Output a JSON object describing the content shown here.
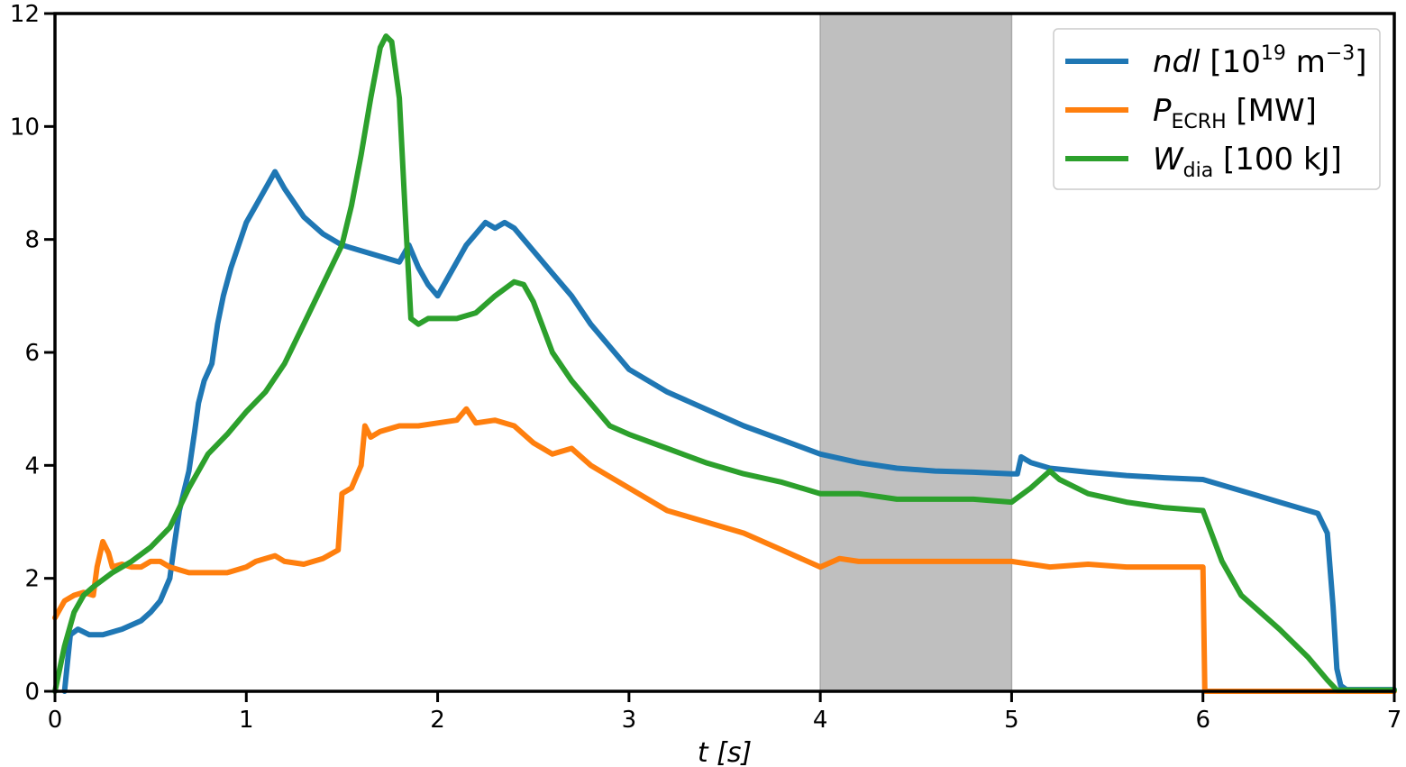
{
  "chart_data": {
    "type": "line",
    "xlabel": "t [s]",
    "ylabel": "",
    "xlim": [
      0,
      7
    ],
    "ylim": [
      0,
      12
    ],
    "xticks": [
      0,
      1,
      2,
      3,
      4,
      5,
      6,
      7
    ],
    "yticks": [
      0,
      2,
      4,
      6,
      8,
      10,
      12
    ],
    "grid": false,
    "legend_position": "top-right",
    "shaded_region": {
      "x": [
        4,
        5
      ],
      "color": "#bfbfbf"
    },
    "series": [
      {
        "name": "ndl [10^19 m^-3]",
        "legend_main": "ndl",
        "legend_rest": "[10",
        "legend_sup": "19",
        "legend_unit": " m",
        "legend_sup2": "−3",
        "legend_end": "]",
        "color": "#1f77b4",
        "x": [
          0.05,
          0.08,
          0.12,
          0.18,
          0.25,
          0.35,
          0.45,
          0.5,
          0.55,
          0.6,
          0.62,
          0.65,
          0.7,
          0.73,
          0.75,
          0.78,
          0.82,
          0.85,
          0.88,
          0.92,
          0.96,
          1.0,
          1.05,
          1.1,
          1.15,
          1.2,
          1.3,
          1.4,
          1.5,
          1.6,
          1.7,
          1.8,
          1.85,
          1.9,
          1.95,
          2.0,
          2.05,
          2.1,
          2.15,
          2.2,
          2.25,
          2.3,
          2.35,
          2.4,
          2.5,
          2.6,
          2.7,
          2.8,
          2.9,
          3.0,
          3.2,
          3.4,
          3.6,
          3.8,
          4.0,
          4.2,
          4.4,
          4.6,
          4.8,
          5.0,
          5.03,
          5.05,
          5.1,
          5.2,
          5.4,
          5.6,
          5.8,
          6.0,
          6.2,
          6.4,
          6.6,
          6.65,
          6.68,
          6.7,
          6.72,
          6.75,
          7.0
        ],
        "y": [
          0.0,
          1.0,
          1.1,
          1.0,
          1.0,
          1.1,
          1.25,
          1.4,
          1.6,
          2.0,
          2.5,
          3.2,
          3.9,
          4.6,
          5.1,
          5.5,
          5.8,
          6.5,
          7.0,
          7.5,
          7.9,
          8.3,
          8.6,
          8.9,
          9.2,
          8.9,
          8.4,
          8.1,
          7.9,
          7.8,
          7.7,
          7.6,
          7.9,
          7.5,
          7.2,
          7.0,
          7.3,
          7.6,
          7.9,
          8.1,
          8.3,
          8.2,
          8.3,
          8.2,
          7.8,
          7.4,
          7.0,
          6.5,
          6.1,
          5.7,
          5.3,
          5.0,
          4.7,
          4.45,
          4.2,
          4.05,
          3.95,
          3.9,
          3.88,
          3.85,
          3.85,
          4.15,
          4.05,
          3.95,
          3.88,
          3.82,
          3.78,
          3.75,
          3.55,
          3.35,
          3.15,
          2.8,
          1.5,
          0.4,
          0.1,
          0.03,
          0.03
        ]
      },
      {
        "name": "P_ECRH [MW]",
        "legend_main": "P",
        "legend_sub": "ECRH",
        "legend_rest": " [MW]",
        "color": "#ff7f0e",
        "x": [
          0.0,
          0.05,
          0.1,
          0.15,
          0.2,
          0.22,
          0.25,
          0.28,
          0.3,
          0.35,
          0.4,
          0.45,
          0.5,
          0.55,
          0.6,
          0.7,
          0.8,
          0.9,
          1.0,
          1.05,
          1.1,
          1.15,
          1.2,
          1.3,
          1.4,
          1.48,
          1.5,
          1.55,
          1.6,
          1.62,
          1.65,
          1.7,
          1.8,
          1.9,
          2.0,
          2.1,
          2.15,
          2.2,
          2.3,
          2.4,
          2.5,
          2.6,
          2.7,
          2.8,
          2.9,
          3.0,
          3.2,
          3.4,
          3.6,
          3.8,
          3.9,
          4.0,
          4.1,
          4.2,
          4.4,
          4.6,
          4.8,
          5.0,
          5.2,
          5.4,
          5.6,
          5.8,
          6.0,
          6.01,
          6.2,
          7.0
        ],
        "y": [
          1.3,
          1.6,
          1.7,
          1.75,
          1.7,
          2.2,
          2.65,
          2.45,
          2.2,
          2.25,
          2.2,
          2.2,
          2.3,
          2.3,
          2.2,
          2.1,
          2.1,
          2.1,
          2.2,
          2.3,
          2.35,
          2.4,
          2.3,
          2.25,
          2.35,
          2.5,
          3.5,
          3.6,
          4.0,
          4.7,
          4.5,
          4.6,
          4.7,
          4.7,
          4.75,
          4.8,
          5.0,
          4.75,
          4.8,
          4.7,
          4.4,
          4.2,
          4.3,
          4.0,
          3.8,
          3.6,
          3.2,
          3.0,
          2.8,
          2.5,
          2.35,
          2.2,
          2.35,
          2.3,
          2.3,
          2.3,
          2.3,
          2.3,
          2.2,
          2.25,
          2.2,
          2.2,
          2.2,
          0.0,
          0.0,
          0.0
        ]
      },
      {
        "name": "W_dia [100 kJ]",
        "legend_main": "W",
        "legend_sub": "dia",
        "legend_rest": " [100 kJ]",
        "color": "#2ca02c",
        "x": [
          0.0,
          0.05,
          0.1,
          0.15,
          0.2,
          0.3,
          0.4,
          0.5,
          0.6,
          0.7,
          0.8,
          0.9,
          1.0,
          1.1,
          1.2,
          1.3,
          1.4,
          1.5,
          1.55,
          1.6,
          1.65,
          1.7,
          1.73,
          1.76,
          1.8,
          1.83,
          1.86,
          1.9,
          1.95,
          2.0,
          2.1,
          2.2,
          2.3,
          2.4,
          2.45,
          2.5,
          2.6,
          2.7,
          2.8,
          2.9,
          3.0,
          3.2,
          3.4,
          3.6,
          3.8,
          4.0,
          4.2,
          4.4,
          4.6,
          4.8,
          5.0,
          5.1,
          5.2,
          5.25,
          5.4,
          5.6,
          5.8,
          6.0,
          6.1,
          6.2,
          6.4,
          6.55,
          6.65,
          6.7,
          7.0
        ],
        "y": [
          0.0,
          0.8,
          1.4,
          1.7,
          1.85,
          2.1,
          2.3,
          2.55,
          2.9,
          3.6,
          4.2,
          4.55,
          4.95,
          5.3,
          5.8,
          6.5,
          7.2,
          7.9,
          8.6,
          9.5,
          10.5,
          11.4,
          11.6,
          11.5,
          10.5,
          8.5,
          6.6,
          6.5,
          6.6,
          6.6,
          6.6,
          6.7,
          7.0,
          7.25,
          7.2,
          6.9,
          6.0,
          5.5,
          5.1,
          4.7,
          4.55,
          4.3,
          4.05,
          3.85,
          3.7,
          3.5,
          3.5,
          3.4,
          3.4,
          3.4,
          3.35,
          3.6,
          3.9,
          3.75,
          3.5,
          3.35,
          3.25,
          3.2,
          2.3,
          1.7,
          1.1,
          0.6,
          0.2,
          0.02,
          0.02
        ]
      }
    ]
  }
}
